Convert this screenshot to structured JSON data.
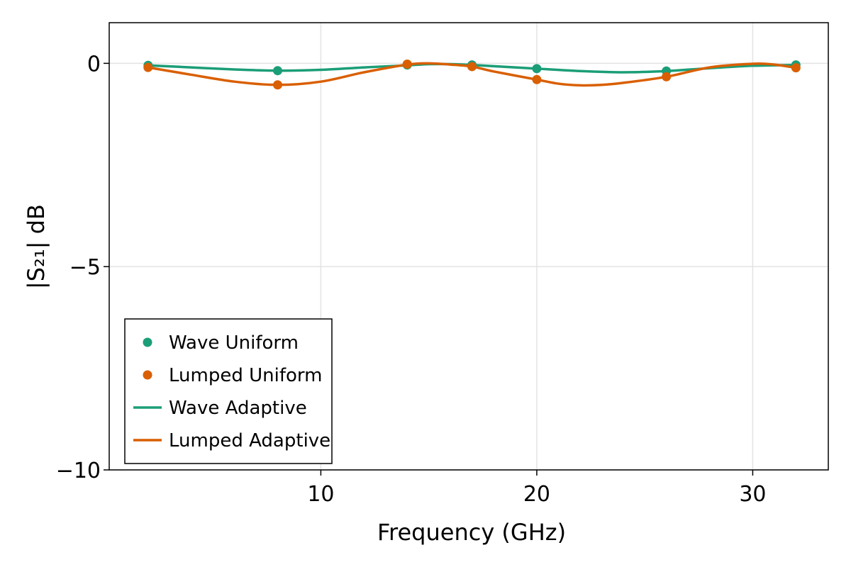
{
  "chart_data": {
    "type": "line",
    "title": "",
    "xlabel": "Frequency (GHz)",
    "ylabel": "|S₂₁| dB",
    "xlim": [
      0.2,
      33.5
    ],
    "ylim": [
      -10,
      1
    ],
    "xticks": [
      10,
      20,
      30
    ],
    "xtick_labels": [
      "10",
      "20",
      "30"
    ],
    "yticks": [
      0,
      -5,
      -10
    ],
    "ytick_labels": [
      "0",
      "−5",
      "−10"
    ],
    "grid": true,
    "legend_position": "bottom-left",
    "series": [
      {
        "name": "Wave Uniform",
        "kind": "scatter",
        "color": "#1b9e77",
        "x": [
          2,
          8,
          14,
          17,
          20,
          26,
          32
        ],
        "y": [
          -0.05,
          -0.18,
          -0.04,
          -0.04,
          -0.13,
          -0.19,
          -0.04
        ]
      },
      {
        "name": "Lumped Uniform",
        "kind": "scatter",
        "color": "#d95f02",
        "x": [
          2,
          8,
          14,
          17,
          20,
          26,
          32
        ],
        "y": [
          -0.1,
          -0.53,
          -0.02,
          -0.08,
          -0.4,
          -0.33,
          -0.11
        ]
      },
      {
        "name": "Wave Adaptive",
        "kind": "line",
        "color": "#1b9e77",
        "x": [
          2,
          4,
          6,
          8,
          10,
          12,
          14,
          15,
          16,
          17,
          18,
          20,
          22,
          24,
          26,
          28,
          30,
          32
        ],
        "y": [
          -0.05,
          -0.1,
          -0.15,
          -0.18,
          -0.16,
          -0.1,
          -0.05,
          -0.02,
          -0.02,
          -0.04,
          -0.07,
          -0.13,
          -0.19,
          -0.22,
          -0.19,
          -0.12,
          -0.06,
          -0.04
        ]
      },
      {
        "name": "Lumped Adaptive",
        "kind": "line",
        "color": "#d95f02",
        "x": [
          2,
          4,
          6,
          8,
          10,
          12,
          14,
          15,
          16,
          17,
          18,
          20,
          21,
          22,
          23,
          24,
          26,
          28,
          30,
          31,
          32
        ],
        "y": [
          -0.1,
          -0.28,
          -0.45,
          -0.53,
          -0.45,
          -0.22,
          -0.03,
          0.0,
          -0.03,
          -0.08,
          -0.2,
          -0.4,
          -0.5,
          -0.54,
          -0.53,
          -0.48,
          -0.33,
          -0.1,
          -0.01,
          -0.03,
          -0.11
        ]
      }
    ]
  }
}
